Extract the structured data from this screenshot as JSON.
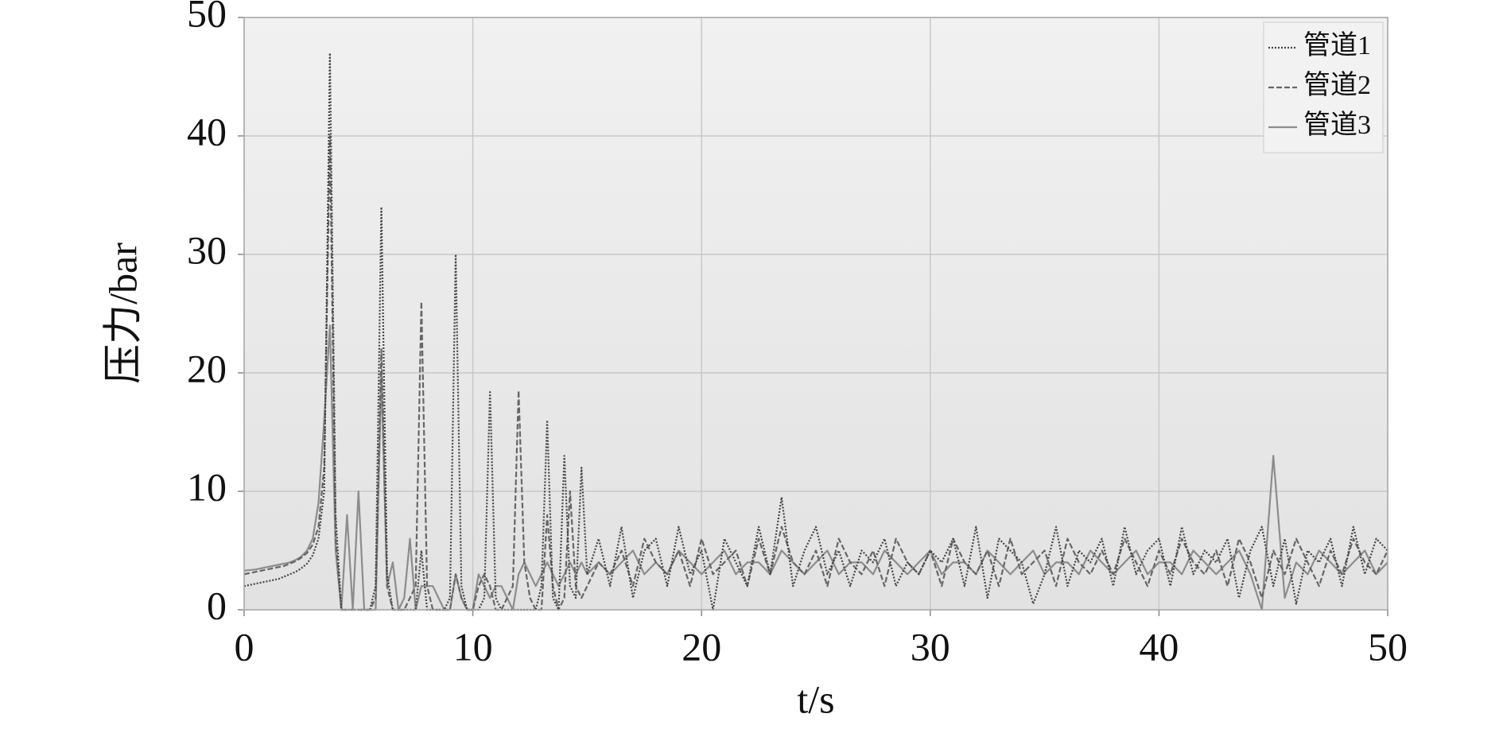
{
  "chart_data": {
    "type": "line",
    "xlabel": "t/s",
    "ylabel": "压力/bar",
    "xlim": [
      0,
      50
    ],
    "ylim": [
      0,
      50
    ],
    "xticks": [
      0,
      10,
      20,
      30,
      40,
      50
    ],
    "yticks": [
      0,
      10,
      20,
      30,
      40,
      50
    ],
    "grid": true,
    "legend": "upper right",
    "x": [
      0,
      0.25,
      0.5,
      0.75,
      1,
      1.25,
      1.5,
      1.75,
      2,
      2.25,
      2.5,
      2.75,
      3,
      3.25,
      3.5,
      3.75,
      4,
      4.25,
      4.5,
      4.75,
      5,
      5.25,
      5.5,
      5.75,
      6,
      6.25,
      6.5,
      6.75,
      7,
      7.25,
      7.5,
      7.75,
      8,
      8.25,
      8.5,
      8.75,
      9,
      9.25,
      9.5,
      9.75,
      10,
      10.25,
      10.5,
      10.75,
      11,
      11.25,
      11.5,
      11.75,
      12,
      12.25,
      12.5,
      12.75,
      13,
      13.25,
      13.5,
      13.75,
      14,
      14.25,
      14.5,
      14.75,
      15,
      15.5,
      16,
      16.5,
      17,
      17.5,
      18,
      18.5,
      19,
      19.5,
      20,
      20.5,
      21,
      21.5,
      22,
      22.5,
      23,
      23.5,
      24,
      24.5,
      25,
      25.5,
      26,
      26.5,
      27,
      27.5,
      28,
      28.5,
      29,
      29.5,
      30,
      30.5,
      31,
      31.5,
      32,
      32.5,
      33,
      33.5,
      34,
      34.5,
      35,
      35.5,
      36,
      36.5,
      37,
      37.5,
      38,
      38.5,
      39,
      39.5,
      40,
      40.5,
      41,
      41.5,
      42,
      42.5,
      43,
      43.5,
      44,
      44.5,
      45,
      45.5,
      46,
      46.5,
      47,
      47.5,
      48,
      48.5,
      49,
      49.5,
      50
    ],
    "series": [
      {
        "name": "管道1",
        "color": "#444444",
        "dash": "2,2",
        "values": [
          2,
          2.1,
          2.2,
          2.3,
          2.4,
          2.5,
          2.6,
          2.8,
          3,
          3.2,
          3.5,
          3.9,
          4.6,
          6,
          10,
          47,
          8,
          0,
          0,
          0,
          0,
          0,
          0,
          2,
          34,
          3,
          0,
          0,
          0,
          0,
          0,
          5,
          0,
          0,
          0,
          0,
          1,
          30,
          2,
          0,
          0,
          0,
          1,
          18.5,
          1,
          0,
          0,
          0,
          0,
          0,
          0,
          0,
          2,
          16,
          1,
          0,
          13,
          2,
          1,
          12,
          3,
          6,
          2,
          7,
          1,
          5,
          6,
          2,
          7,
          3,
          5,
          0,
          6,
          4,
          2,
          7,
          3,
          9.5,
          2,
          5,
          7,
          3,
          5,
          2,
          5,
          4,
          6,
          2,
          4,
          3,
          5,
          4,
          6,
          2,
          7,
          1,
          6,
          5,
          4,
          0.5,
          3,
          7,
          2,
          5,
          4,
          6,
          2,
          7,
          3,
          5,
          6,
          2,
          7,
          3,
          5,
          4,
          6,
          1,
          5,
          7,
          2,
          6,
          0.5,
          5,
          4,
          6,
          2,
          7,
          3,
          6,
          5
        ]
      },
      {
        "name": "管道2",
        "color": "#666666",
        "dash": "7,3",
        "values": [
          3,
          3.1,
          3.2,
          3.3,
          3.4,
          3.5,
          3.6,
          3.7,
          3.9,
          4.1,
          4.4,
          4.8,
          5.5,
          7,
          12,
          40,
          6,
          0,
          0,
          0,
          0,
          0,
          0,
          1,
          22,
          2,
          0,
          0,
          0,
          1,
          2,
          26,
          2,
          0,
          0,
          0,
          0,
          3,
          1,
          0,
          0,
          2,
          3,
          2,
          0,
          0,
          1,
          2,
          18.5,
          4,
          1,
          0,
          0,
          8,
          2,
          0,
          1,
          10,
          2,
          1,
          2,
          4,
          3,
          5,
          2,
          6,
          4,
          3,
          5,
          2,
          6,
          3,
          4,
          5,
          2,
          6,
          3,
          7,
          4,
          3,
          5,
          2,
          6,
          4,
          3,
          5,
          2,
          6,
          4,
          3,
          5,
          2,
          6,
          4,
          3,
          5,
          2,
          6,
          3,
          4,
          5,
          2,
          6,
          4,
          3,
          5,
          3,
          6,
          4,
          2,
          5,
          3,
          6,
          4,
          3,
          5,
          2,
          6,
          4,
          1,
          5,
          3,
          6,
          4,
          2,
          5,
          3,
          6,
          4,
          3,
          5
        ]
      },
      {
        "name": "管道3",
        "color": "#8c8c8c",
        "dash": "none",
        "values": [
          3.3,
          3.35,
          3.4,
          3.5,
          3.6,
          3.7,
          3.8,
          3.9,
          4,
          4.2,
          4.5,
          5,
          6,
          9,
          16,
          24,
          5,
          0,
          8,
          0,
          10,
          0,
          0,
          0,
          20,
          2,
          4,
          0,
          1,
          6,
          0,
          2,
          2,
          2,
          1,
          0,
          0,
          3,
          1,
          0,
          0,
          3,
          2,
          1,
          2,
          2,
          1,
          0,
          3,
          4,
          3,
          2,
          3,
          4,
          3,
          2,
          3,
          4,
          3,
          4,
          3,
          4,
          3,
          4,
          5,
          3,
          4,
          3,
          5,
          4,
          3,
          4,
          5,
          3,
          4,
          4,
          3,
          5,
          4,
          3,
          4,
          5,
          3,
          4,
          4,
          3,
          5,
          4,
          3,
          4,
          5,
          3,
          4,
          4,
          3,
          5,
          4,
          3,
          4,
          5,
          3,
          4,
          4,
          3,
          5,
          4,
          3,
          4,
          5,
          3,
          4,
          4,
          3,
          5,
          4,
          3,
          4,
          5,
          3,
          0,
          13,
          1,
          4,
          3,
          5,
          4,
          3,
          4,
          5,
          3,
          4
        ]
      }
    ]
  }
}
